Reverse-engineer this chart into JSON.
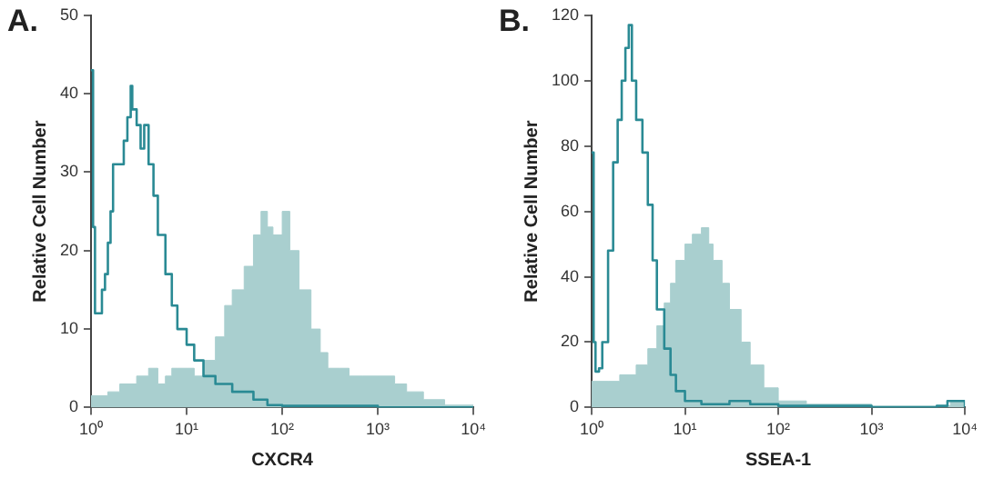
{
  "chart_data": [
    {
      "type": "area",
      "title": "A.",
      "xlabel": "CXCR4",
      "ylabel": "Relative Cell Number",
      "log": "x",
      "grid": false,
      "legend": false,
      "marker": "none",
      "xlim": [
        1,
        10000
      ],
      "xticks": [
        {
          "value": 1,
          "label": "10⁰"
        },
        {
          "value": 10,
          "label": "10¹"
        },
        {
          "value": 100,
          "label": "10²"
        },
        {
          "value": 1000,
          "label": "10³"
        },
        {
          "value": 10000,
          "label": "10⁴"
        }
      ],
      "ylim": [
        0,
        50
      ],
      "yticks": [
        0,
        10,
        20,
        30,
        40,
        50
      ],
      "series": [
        {
          "type": "area",
          "color": "#a9cfcf",
          "x": [
            1,
            1.5,
            2,
            3,
            4,
            5,
            6,
            7,
            8,
            10,
            12,
            15,
            20,
            25,
            30,
            40,
            50,
            60,
            70,
            80,
            100,
            120,
            150,
            200,
            250,
            300,
            400,
            500,
            700,
            1000,
            1500,
            2000,
            3000,
            5000,
            10000
          ],
          "values": [
            1.5,
            2,
            3,
            4,
            5,
            3,
            4,
            5,
            5,
            5,
            4,
            6,
            9,
            13,
            15,
            18,
            22,
            25,
            23,
            22,
            25,
            20,
            15,
            10,
            7,
            5,
            5,
            4,
            4,
            4,
            3,
            2,
            1,
            0.3,
            0
          ]
        },
        {
          "type": "step",
          "color": "#2a8a94",
          "x": [
            1,
            1.05,
            1.1,
            1.2,
            1.3,
            1.4,
            1.5,
            1.6,
            1.7,
            2,
            2.2,
            2.4,
            2.6,
            2.7,
            3,
            3.3,
            3.6,
            4,
            4.5,
            5,
            6,
            7,
            8,
            10,
            12,
            15,
            20,
            30,
            50,
            70,
            100,
            1000,
            10000
          ],
          "values": [
            43,
            23,
            12,
            12,
            15,
            17,
            21,
            25,
            31,
            31,
            34,
            37,
            41,
            38,
            36,
            33,
            36,
            31,
            27,
            22,
            17,
            13,
            10,
            8,
            6,
            4,
            3,
            2,
            1,
            0.3,
            0.2,
            0,
            0
          ]
        }
      ]
    },
    {
      "type": "area",
      "title": "B.",
      "xlabel": "SSEA-1",
      "ylabel": "Relative Cell Number",
      "log": "x",
      "grid": false,
      "legend": false,
      "marker": "none",
      "xlim": [
        1,
        10000
      ],
      "xticks": [
        {
          "value": 1,
          "label": "10⁰"
        },
        {
          "value": 10,
          "label": "10¹"
        },
        {
          "value": 100,
          "label": "10²"
        },
        {
          "value": 1000,
          "label": "10³"
        },
        {
          "value": 10000,
          "label": "10⁴"
        }
      ],
      "ylim": [
        0,
        120
      ],
      "yticks": [
        0,
        20,
        40,
        60,
        80,
        100,
        120
      ],
      "series": [
        {
          "type": "area",
          "color": "#a9cfcf",
          "x": [
            1,
            1.5,
            2,
            3,
            4,
            5,
            6,
            7,
            8,
            10,
            12,
            15,
            18,
            20,
            25,
            30,
            40,
            50,
            70,
            100,
            200,
            1000,
            5000,
            7000,
            10000
          ],
          "values": [
            8,
            8,
            10,
            13,
            18,
            25,
            32,
            38,
            45,
            50,
            53,
            55,
            50,
            45,
            38,
            30,
            20,
            13,
            6,
            2,
            1,
            0.5,
            0.5,
            2,
            0
          ]
        },
        {
          "type": "step",
          "color": "#2a8a94",
          "x": [
            1,
            1.05,
            1.1,
            1.2,
            1.3,
            1.5,
            1.7,
            1.9,
            2.1,
            2.3,
            2.5,
            2.7,
            3,
            3.5,
            4,
            4.5,
            5,
            6,
            7,
            8,
            10,
            15,
            20,
            30,
            50,
            100,
            1000,
            5000,
            6500,
            10000
          ],
          "values": [
            78,
            20,
            11,
            12,
            20,
            48,
            75,
            88,
            100,
            110,
            117,
            100,
            88,
            78,
            62,
            45,
            30,
            18,
            10,
            5,
            2,
            1,
            1,
            2,
            1,
            0.5,
            0,
            0.5,
            2,
            0
          ]
        }
      ]
    }
  ]
}
